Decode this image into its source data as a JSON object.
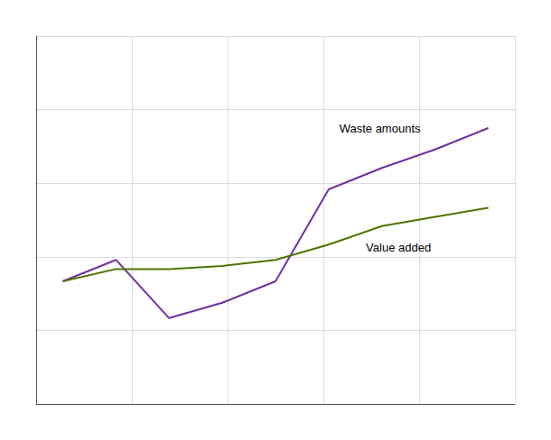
{
  "chart_data": {
    "type": "line",
    "x": [
      0,
      1,
      2,
      3,
      4,
      5,
      6,
      7,
      8
    ],
    "series": [
      {
        "name": "Waste amounts",
        "color": "#7030A0",
        "values": [
          100,
          107,
          88,
          93,
          100,
          130,
          137,
          143,
          150
        ]
      },
      {
        "name": "Value added",
        "color": "#4E7300",
        "values": [
          100,
          104,
          104,
          105,
          107,
          112,
          118,
          121,
          124
        ]
      }
    ],
    "annotations": [
      {
        "text": "Waste amounts",
        "x": 5.2,
        "y": 148
      },
      {
        "text": "Value added",
        "x": 5.7,
        "y": 113
      }
    ],
    "xlim": [
      -0.5,
      8.5
    ],
    "xticks": [
      -0.5,
      1.3,
      3.1,
      4.9,
      6.7,
      8.5
    ],
    "ylim": [
      60,
      180
    ],
    "yticks": [
      60,
      84,
      108,
      132,
      156,
      180
    ],
    "grid": true,
    "tick_labels": false
  }
}
